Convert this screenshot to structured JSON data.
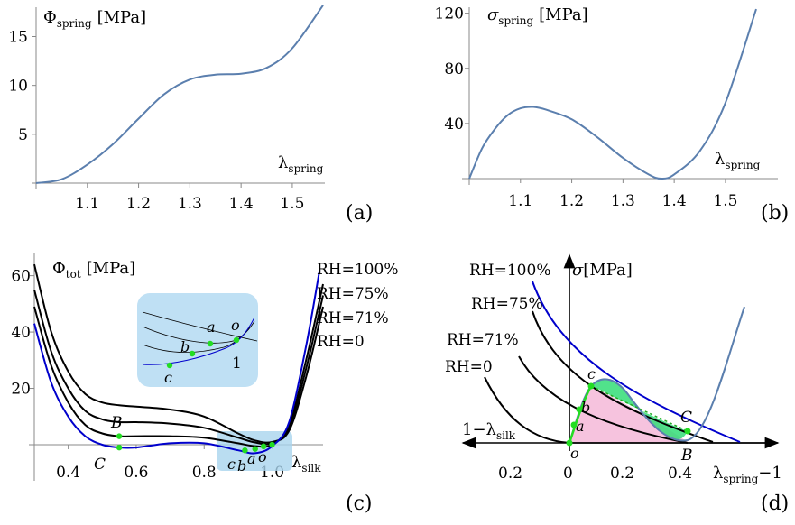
{
  "chart_data": [
    {
      "panel": "(a)",
      "type": "line",
      "ylabel": "Φ",
      "ylabel_sub": "spring",
      "ylabel_unit": "[MPa]",
      "xlabel": "λ",
      "xlabel_sub": "spring",
      "xlim": [
        1.0,
        1.56
      ],
      "ylim": [
        0,
        18
      ],
      "xticks": [
        "1.1",
        "1.2",
        "1.3",
        "1.4",
        "1.5"
      ],
      "yticks": [
        "5",
        "10",
        "15"
      ],
      "series": [
        {
          "color": "#5b7fae",
          "x": [
            1.0,
            1.05,
            1.1,
            1.15,
            1.2,
            1.25,
            1.3,
            1.35,
            1.4,
            1.45,
            1.5,
            1.56
          ],
          "y": [
            0,
            0.4,
            1.9,
            4.0,
            6.6,
            9.1,
            10.6,
            11.1,
            11.2,
            11.8,
            13.8,
            18.2
          ]
        }
      ]
    },
    {
      "panel": "(b)",
      "type": "line",
      "ylabel": "σ",
      "ylabel_sub": "spring",
      "ylabel_unit": "[MPa]",
      "xlabel": "λ",
      "xlabel_sub": "spring",
      "xlim": [
        1.0,
        1.56
      ],
      "ylim": [
        0,
        125
      ],
      "xticks": [
        "1.1",
        "1.2",
        "1.3",
        "1.4",
        "1.5"
      ],
      "yticks": [
        "40",
        "80",
        "120"
      ],
      "series": [
        {
          "color": "#5b7fae",
          "x": [
            1.0,
            1.025,
            1.05,
            1.075,
            1.1,
            1.125,
            1.15,
            1.2,
            1.25,
            1.3,
            1.35,
            1.375,
            1.4,
            1.45,
            1.5,
            1.56
          ],
          "y": [
            0,
            22,
            36,
            46,
            51,
            52,
            50,
            43,
            30,
            15,
            3,
            0,
            3,
            20,
            55,
            123
          ]
        }
      ]
    },
    {
      "panel": "(c)",
      "type": "line",
      "ylabel": "Φ",
      "ylabel_sub": "tot",
      "ylabel_unit": "[MPa]",
      "xlabel": "λ",
      "xlabel_sub": "silk",
      "xlim": [
        0.3,
        1.15
      ],
      "ylim": [
        -5,
        65
      ],
      "xticks": [
        "0.4",
        "0.6",
        "0.8",
        "1.0"
      ],
      "yticks": [
        "20",
        "40",
        "60"
      ],
      "series": [
        {
          "name": "RH=100%",
          "color": "#0000cc",
          "x": [
            0.3,
            0.35,
            0.4,
            0.45,
            0.5,
            0.55,
            0.6,
            0.7,
            0.8,
            0.9,
            0.95,
            1.0,
            1.05,
            1.1,
            1.14
          ],
          "y": [
            43,
            22,
            10,
            3,
            0,
            -1,
            -1,
            0.5,
            0.5,
            -2,
            -3,
            -0.5,
            8,
            35,
            62
          ]
        },
        {
          "name": "RH=75%",
          "color": "#000000",
          "x": [
            0.3,
            0.35,
            0.4,
            0.45,
            0.5,
            0.55,
            0.6,
            0.7,
            0.8,
            0.9,
            0.95,
            1.0,
            1.05,
            1.1,
            1.15
          ],
          "y": [
            49,
            28,
            15,
            7,
            4,
            3,
            3,
            3,
            2.5,
            0.5,
            -0.5,
            0,
            7,
            30,
            57
          ]
        },
        {
          "name": "RH=71%",
          "color": "#000000",
          "x": [
            0.3,
            0.35,
            0.4,
            0.45,
            0.5,
            0.55,
            0.6,
            0.7,
            0.8,
            0.9,
            0.95,
            1.0,
            1.05,
            1.1,
            1.15
          ],
          "y": [
            55,
            33,
            20,
            12,
            9,
            8,
            8,
            7.5,
            6,
            2.5,
            0.8,
            0.5,
            6,
            27,
            53
          ]
        },
        {
          "name": "RH=0",
          "color": "#000000",
          "x": [
            0.3,
            0.35,
            0.4,
            0.45,
            0.5,
            0.55,
            0.6,
            0.7,
            0.8,
            0.9,
            0.95,
            1.0,
            1.05,
            1.1,
            1.15
          ],
          "y": [
            64,
            40,
            26,
            18,
            15,
            14,
            13.5,
            12.5,
            10,
            4,
            1.5,
            1,
            5,
            24,
            49
          ]
        }
      ],
      "legend": [
        "RH=100%",
        "RH=75%",
        "RH=71%",
        "RH=0"
      ],
      "annotations": [
        "B",
        "C",
        "c",
        "b",
        "a",
        "o",
        "a",
        "o",
        "b",
        "c",
        "1"
      ]
    },
    {
      "panel": "(d)",
      "type": "line",
      "ylabel": "σ",
      "ylabel_unit": "[MPa]",
      "xlabel": "λ",
      "xlabel_sub": "spring",
      "xlabel_suffix": "−1",
      "neg_xlabel": "1−λ",
      "neg_xlabel_sub": "silk",
      "xticks": [
        "0.2",
        "0",
        "0.2",
        "0.4"
      ],
      "legend": [
        "RH=100%",
        "RH=75%",
        "RH=71%",
        "RH=0"
      ],
      "annotations": [
        "c",
        "b",
        "a",
        "o",
        "C",
        "B"
      ]
    }
  ],
  "labels": {
    "panel_a": "(a)",
    "panel_b": "(b)",
    "panel_c": "(c)",
    "panel_d": "(d)"
  }
}
